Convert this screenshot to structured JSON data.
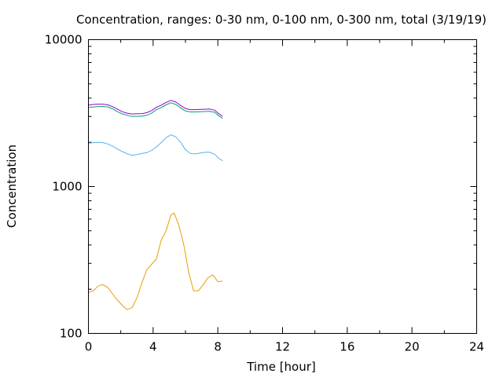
{
  "chart_data": {
    "type": "line",
    "title": "Concentration, ranges: 0-30 nm, 0-100 nm, 0-300 nm, total (3/19/19)",
    "xlabel": "Time [hour]",
    "ylabel": "Concentration",
    "xlim": [
      0,
      24
    ],
    "ylim": [
      100,
      10000
    ],
    "yscale": "log",
    "grid": false,
    "x_ticks": [
      0,
      4,
      8,
      12,
      16,
      20,
      24
    ],
    "x_tick_labels": [
      "0",
      "4",
      "8",
      "12",
      "16",
      "20",
      "24"
    ],
    "y_ticks": [
      100,
      1000,
      10000
    ],
    "y_tick_labels": [
      "100",
      "1000",
      "10000"
    ],
    "series": [
      {
        "color": "#e69f00",
        "points": [
          [
            0,
            190
          ],
          [
            0.3,
            195
          ],
          [
            0.6,
            210
          ],
          [
            0.9,
            215
          ],
          [
            1.2,
            205
          ],
          [
            1.5,
            185
          ],
          [
            1.8,
            168
          ],
          [
            2.1,
            155
          ],
          [
            2.4,
            145
          ],
          [
            2.7,
            150
          ],
          [
            3.0,
            175
          ],
          [
            3.3,
            220
          ],
          [
            3.6,
            270
          ],
          [
            3.9,
            295
          ],
          [
            4.2,
            320
          ],
          [
            4.5,
            430
          ],
          [
            4.8,
            500
          ],
          [
            5.1,
            640
          ],
          [
            5.3,
            660
          ],
          [
            5.6,
            540
          ],
          [
            5.9,
            400
          ],
          [
            6.2,
            260
          ],
          [
            6.5,
            195
          ],
          [
            6.8,
            195
          ],
          [
            7.1,
            215
          ],
          [
            7.4,
            240
          ],
          [
            7.7,
            250
          ],
          [
            8.0,
            225
          ],
          [
            8.3,
            227
          ]
        ]
      },
      {
        "color": "#56b4e9",
        "points": [
          [
            0,
            1970
          ],
          [
            0.3,
            1990
          ],
          [
            0.6,
            2000
          ],
          [
            0.9,
            1990
          ],
          [
            1.2,
            1950
          ],
          [
            1.5,
            1880
          ],
          [
            1.8,
            1800
          ],
          [
            2.1,
            1730
          ],
          [
            2.4,
            1670
          ],
          [
            2.7,
            1630
          ],
          [
            3.0,
            1650
          ],
          [
            3.3,
            1680
          ],
          [
            3.6,
            1700
          ],
          [
            3.9,
            1760
          ],
          [
            4.2,
            1860
          ],
          [
            4.5,
            1990
          ],
          [
            4.8,
            2150
          ],
          [
            5.1,
            2250
          ],
          [
            5.4,
            2180
          ],
          [
            5.7,
            2000
          ],
          [
            6.0,
            1780
          ],
          [
            6.3,
            1680
          ],
          [
            6.6,
            1670
          ],
          [
            6.9,
            1690
          ],
          [
            7.2,
            1710
          ],
          [
            7.5,
            1710
          ],
          [
            7.8,
            1660
          ],
          [
            8.1,
            1540
          ],
          [
            8.3,
            1500
          ]
        ]
      },
      {
        "color": "#009e73",
        "points": [
          [
            0,
            3450
          ],
          [
            0.3,
            3480
          ],
          [
            0.6,
            3500
          ],
          [
            0.9,
            3510
          ],
          [
            1.2,
            3480
          ],
          [
            1.5,
            3380
          ],
          [
            1.8,
            3230
          ],
          [
            2.1,
            3120
          ],
          [
            2.4,
            3060
          ],
          [
            2.7,
            3000
          ],
          [
            3.0,
            3010
          ],
          [
            3.3,
            3010
          ],
          [
            3.6,
            3050
          ],
          [
            3.9,
            3160
          ],
          [
            4.2,
            3330
          ],
          [
            4.5,
            3450
          ],
          [
            4.8,
            3600
          ],
          [
            5.1,
            3720
          ],
          [
            5.4,
            3620
          ],
          [
            5.7,
            3430
          ],
          [
            6.0,
            3270
          ],
          [
            6.3,
            3220
          ],
          [
            6.6,
            3220
          ],
          [
            6.9,
            3230
          ],
          [
            7.2,
            3240
          ],
          [
            7.5,
            3250
          ],
          [
            7.8,
            3200
          ],
          [
            8.1,
            3000
          ],
          [
            8.3,
            2920
          ]
        ]
      },
      {
        "color": "#9400d3",
        "points": [
          [
            0,
            3580
          ],
          [
            0.3,
            3620
          ],
          [
            0.6,
            3640
          ],
          [
            0.9,
            3640
          ],
          [
            1.2,
            3600
          ],
          [
            1.5,
            3500
          ],
          [
            1.8,
            3360
          ],
          [
            2.1,
            3230
          ],
          [
            2.4,
            3160
          ],
          [
            2.7,
            3120
          ],
          [
            3.0,
            3130
          ],
          [
            3.3,
            3130
          ],
          [
            3.6,
            3180
          ],
          [
            3.9,
            3290
          ],
          [
            4.2,
            3460
          ],
          [
            4.5,
            3580
          ],
          [
            4.8,
            3740
          ],
          [
            5.1,
            3860
          ],
          [
            5.4,
            3760
          ],
          [
            5.7,
            3560
          ],
          [
            6.0,
            3400
          ],
          [
            6.3,
            3340
          ],
          [
            6.6,
            3340
          ],
          [
            6.9,
            3350
          ],
          [
            7.2,
            3360
          ],
          [
            7.5,
            3370
          ],
          [
            7.8,
            3310
          ],
          [
            8.1,
            3100
          ],
          [
            8.3,
            3010
          ]
        ]
      }
    ]
  }
}
